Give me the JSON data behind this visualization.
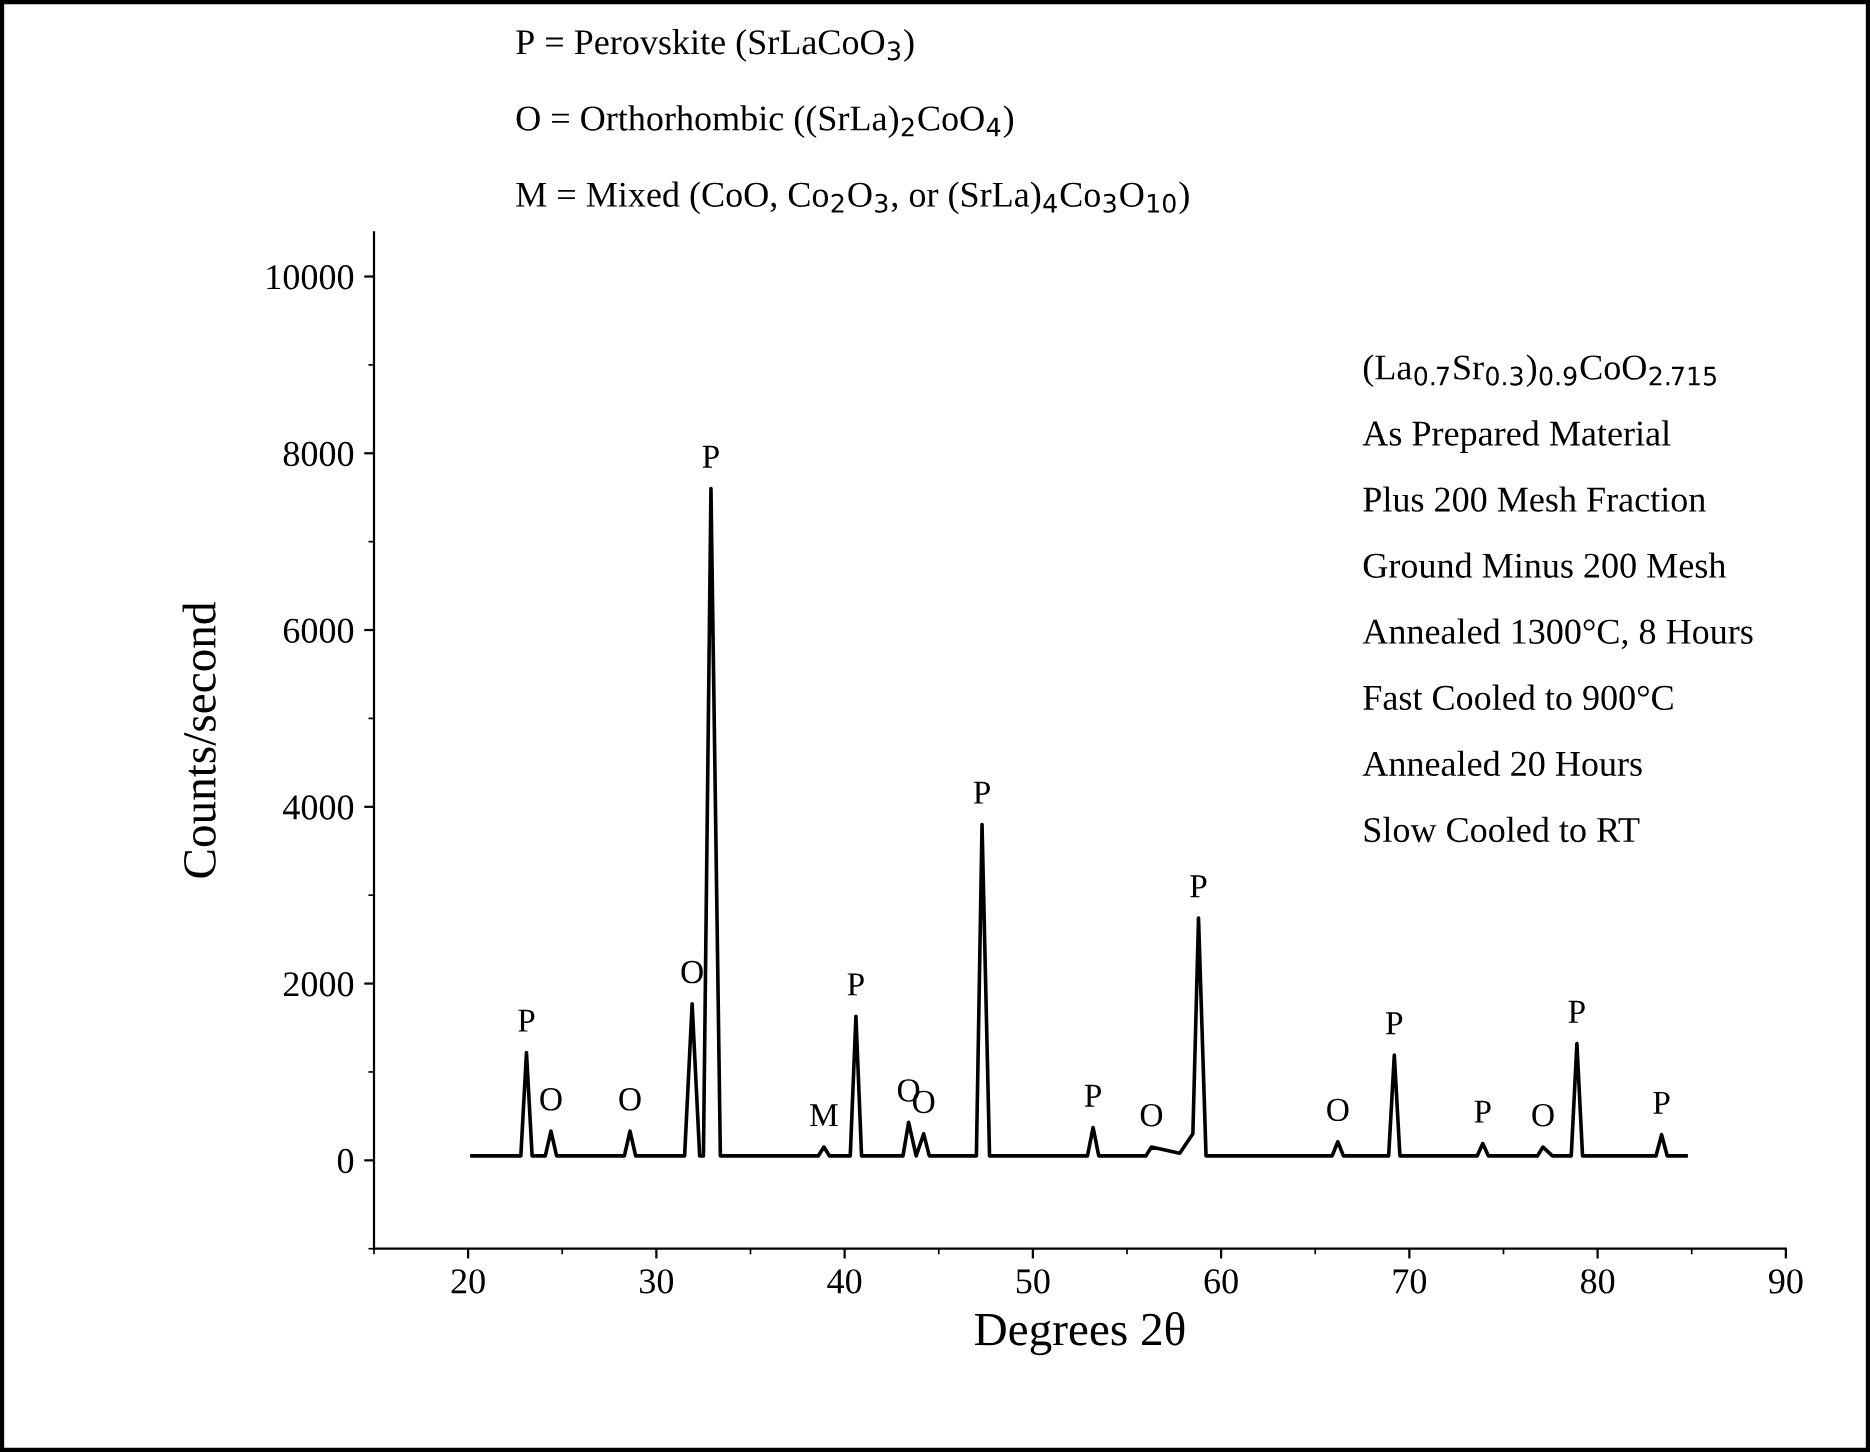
{
  "chart_data": {
    "type": "line",
    "xlabel": "Degrees 2θ",
    "ylabel": "Counts/second",
    "xlim": [
      15,
      90
    ],
    "xticks": [
      20,
      30,
      40,
      50,
      60,
      70,
      80,
      90
    ],
    "ylim": [
      -1000,
      10500
    ],
    "yticks": [
      0,
      2000,
      4000,
      6000,
      8000,
      10000
    ],
    "grid": false,
    "legend": false,
    "marker": "none",
    "line_style": "solid",
    "series": [
      {
        "color": "#000000",
        "x": [
          20.2,
          22.8,
          23.1,
          23.4,
          24.1,
          24.4,
          24.7,
          28.3,
          28.6,
          28.9,
          31.5,
          31.9,
          32.3,
          32.5,
          32.9,
          33.4,
          38.6,
          38.9,
          39.2,
          40.3,
          40.6,
          40.9,
          43.1,
          43.4,
          43.8,
          44.2,
          44.5,
          47.0,
          47.3,
          47.7,
          52.9,
          53.2,
          53.5,
          56.0,
          56.3,
          57.8,
          58.5,
          58.8,
          59.2,
          65.9,
          66.2,
          66.5,
          68.9,
          69.2,
          69.5,
          73.6,
          73.9,
          74.2,
          76.8,
          77.1,
          77.6,
          78.6,
          78.9,
          79.2,
          83.1,
          83.4,
          83.7,
          84.7
        ],
        "values": [
          50,
          50,
          1220,
          50,
          50,
          330,
          50,
          50,
          330,
          50,
          50,
          1770,
          50,
          50,
          7600,
          50,
          50,
          150,
          50,
          50,
          1630,
          50,
          50,
          430,
          50,
          300,
          50,
          50,
          3800,
          50,
          50,
          370,
          50,
          50,
          150,
          80,
          300,
          2740,
          50,
          50,
          210,
          50,
          50,
          1190,
          50,
          50,
          190,
          50,
          50,
          150,
          50,
          50,
          1320,
          50,
          50,
          290,
          50,
          50
        ]
      }
    ],
    "annotations": [
      "P = Perovskite (SrLaCoO$_{3}$)",
      "O = Orthorhombic ((SrLa)$_{2}$CoO$_{4}$)",
      "M = Mixed (CoO, Co$_{2}$O$_{3}$, or (SrLa)$_{4}$Co$_{3}$O$_{10}$)",
      "(La$_{0.7}$Sr$_{0.3}$)$_{0.9}$CoO$_{2.715}$",
      "As Prepared Material",
      "Plus 200 Mesh Fraction",
      "Ground Minus 200 Mesh",
      "Annealed 1300°C, 8 Hours",
      "Fast Cooled to 900°C",
      "Annealed 20 Hours",
      "Slow Cooled to RT",
      {
        "text": "P",
        "x": 23.1,
        "y": 1220
      },
      {
        "text": "O",
        "x": 24.4,
        "y": 330
      },
      {
        "text": "O",
        "x": 28.6,
        "y": 330
      },
      {
        "text": "O",
        "x": 31.9,
        "y": 1770
      },
      {
        "text": "P",
        "x": 32.9,
        "y": 7600
      },
      {
        "text": "M",
        "x": 38.9,
        "y": 150
      },
      {
        "text": "P",
        "x": 40.6,
        "y": 1630
      },
      {
        "text": "O",
        "x": 43.4,
        "y": 430
      },
      {
        "text": "O",
        "x": 44.2,
        "y": 300
      },
      {
        "text": "P",
        "x": 47.3,
        "y": 3800
      },
      {
        "text": "P",
        "x": 53.2,
        "y": 370
      },
      {
        "text": "O",
        "x": 56.3,
        "y": 150
      },
      {
        "text": "P",
        "x": 58.8,
        "y": 2740
      },
      {
        "text": "O",
        "x": 66.2,
        "y": 210
      },
      {
        "text": "P",
        "x": 69.2,
        "y": 1190
      },
      {
        "text": "P",
        "x": 73.9,
        "y": 190
      },
      {
        "text": "O",
        "x": 77.1,
        "y": 150
      },
      {
        "text": "P",
        "x": 78.9,
        "y": 1320
      },
      {
        "text": "P",
        "x": 83.4,
        "y": 290
      }
    ]
  }
}
